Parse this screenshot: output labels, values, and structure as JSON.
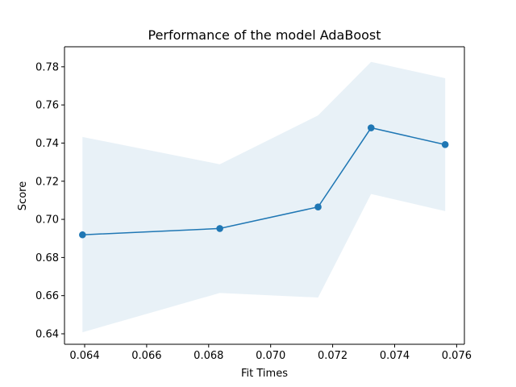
{
  "chart_data": {
    "type": "line",
    "title": "Performance of the model AdaBoost",
    "xlabel": "Fit Times",
    "ylabel": "Score",
    "xlim": [
      0.06335,
      0.07625
    ],
    "ylim": [
      0.6345,
      0.7905
    ],
    "grid": false,
    "x_ticks": [
      {
        "value": 0.064,
        "label": "0.064"
      },
      {
        "value": 0.066,
        "label": "0.066"
      },
      {
        "value": 0.068,
        "label": "0.068"
      },
      {
        "value": 0.07,
        "label": "0.070"
      },
      {
        "value": 0.072,
        "label": "0.072"
      },
      {
        "value": 0.074,
        "label": "0.074"
      },
      {
        "value": 0.076,
        "label": "0.076"
      }
    ],
    "y_ticks": [
      {
        "value": 0.64,
        "label": "0.64"
      },
      {
        "value": 0.66,
        "label": "0.66"
      },
      {
        "value": 0.68,
        "label": "0.68"
      },
      {
        "value": 0.7,
        "label": "0.70"
      },
      {
        "value": 0.72,
        "label": "0.72"
      },
      {
        "value": 0.74,
        "label": "0.74"
      },
      {
        "value": 0.76,
        "label": "0.76"
      },
      {
        "value": 0.78,
        "label": "0.78"
      }
    ],
    "series": [
      {
        "x": [
          0.06393,
          0.06836,
          0.07153,
          0.07324,
          0.07563
        ],
        "y": [
          0.6919,
          0.6952,
          0.7065,
          0.748,
          0.7392
        ],
        "lower": [
          0.6408,
          0.6614,
          0.659,
          0.7133,
          0.7043
        ],
        "upper": [
          0.7432,
          0.7289,
          0.7545,
          0.7826,
          0.774
        ],
        "color": "#1f77b4",
        "band_color": "#1f77b4"
      }
    ]
  }
}
